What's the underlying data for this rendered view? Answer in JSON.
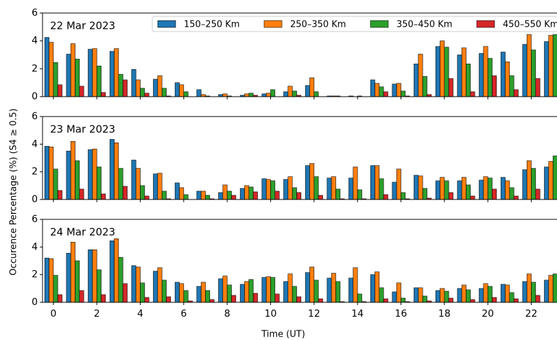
{
  "chart_data": [
    {
      "type": "bar",
      "title": "22 Mar 2023",
      "x": [
        0,
        1,
        2,
        3,
        4,
        5,
        6,
        7,
        8,
        9,
        10,
        11,
        12,
        13,
        14,
        15,
        16,
        17,
        18,
        19,
        20,
        21,
        22,
        23
      ],
      "xlim": [
        -0.5,
        23.5
      ],
      "xticks": [
        0,
        2,
        4,
        6,
        8,
        10,
        12,
        14,
        16,
        18,
        20,
        22
      ],
      "ylim": [
        0,
        6
      ],
      "yticks": [
        0,
        2,
        4,
        6
      ],
      "legend": "upper right",
      "series": [
        {
          "name": "150–250 Km",
          "color": "#1f77b4",
          "values": [
            4.25,
            3.05,
            3.4,
            3.25,
            1.95,
            1.25,
            1.0,
            0.5,
            0.15,
            0.1,
            0.2,
            0.35,
            0.8,
            0.05,
            0.05,
            1.2,
            0.9,
            2.35,
            3.6,
            3.0,
            3.1,
            3.2,
            3.75,
            3.95
          ]
        },
        {
          "name": "250–350 Km",
          "color": "#ff7f0e",
          "values": [
            3.9,
            3.8,
            3.45,
            3.45,
            1.2,
            1.5,
            0.85,
            0.15,
            0.2,
            0.2,
            0.25,
            0.75,
            1.35,
            0.05,
            0,
            0.95,
            0.95,
            3.05,
            4.0,
            3.5,
            3.6,
            2.5,
            4.45,
            4.4
          ]
        },
        {
          "name": "350–450 Km",
          "color": "#2ca02c",
          "values": [
            2.45,
            2.7,
            2.2,
            1.6,
            0.6,
            0.6,
            0.35,
            0.05,
            0.05,
            0.25,
            0.5,
            0.4,
            0.35,
            0.05,
            0.05,
            0.7,
            0.4,
            1.45,
            3.55,
            2.35,
            2.75,
            1.5,
            3.35,
            4.45
          ]
        },
        {
          "name": "450–550 Km",
          "color": "#d62728",
          "values": [
            0.85,
            0.75,
            0.3,
            1.2,
            0.25,
            0.05,
            0,
            0,
            0,
            0.1,
            0,
            0.1,
            0,
            0,
            0,
            0.35,
            0.05,
            0.15,
            1.3,
            0.35,
            1.5,
            0.5,
            1.3,
            1.0
          ]
        }
      ]
    },
    {
      "type": "bar",
      "title": "23 Mar 2023",
      "ylabel": "Occurence Percentage (%) (S4 ≥ 0.5)",
      "x": [
        0,
        1,
        2,
        3,
        4,
        5,
        6,
        7,
        8,
        9,
        10,
        11,
        12,
        13,
        14,
        15,
        16,
        17,
        18,
        19,
        20,
        21,
        22,
        23
      ],
      "xlim": [
        -0.5,
        23.5
      ],
      "xticks": [
        0,
        2,
        4,
        6,
        8,
        10,
        12,
        14,
        16,
        18,
        20,
        22
      ],
      "ylim": [
        0,
        6
      ],
      "yticks": [
        0,
        2,
        4,
        6
      ],
      "series": [
        {
          "color": "#1f77b4",
          "values": [
            3.85,
            3.5,
            3.6,
            4.35,
            2.85,
            1.85,
            1.2,
            0.6,
            0.5,
            0.8,
            1.5,
            1.45,
            2.45,
            1.55,
            1.55,
            2.45,
            1.25,
            1.75,
            1.35,
            1.35,
            1.4,
            1.6,
            2.15,
            2.35
          ]
        },
        {
          "color": "#ff7f0e",
          "values": [
            3.8,
            4.2,
            3.65,
            4.1,
            2.25,
            1.9,
            0.85,
            0.6,
            1.05,
            1.0,
            1.45,
            1.65,
            2.6,
            1.65,
            2.35,
            2.45,
            2.2,
            1.7,
            1.6,
            1.6,
            1.65,
            1.35,
            2.8,
            2.75
          ]
        },
        {
          "color": "#2ca02c",
          "values": [
            2.2,
            2.8,
            2.35,
            2.25,
            1.0,
            0.6,
            0.35,
            0.3,
            0.6,
            0.9,
            1.35,
            0.85,
            1.65,
            0.75,
            0.7,
            1.5,
            0.5,
            0.8,
            1.35,
            1.05,
            1.55,
            0.85,
            2.25,
            3.15
          ]
        },
        {
          "color": "#d62728",
          "values": [
            0.65,
            0.75,
            0.4,
            0.95,
            0.25,
            0.05,
            0,
            0.05,
            0.3,
            0.55,
            0.6,
            0.5,
            0.3,
            0.05,
            0.05,
            0.35,
            0.05,
            0.1,
            0.5,
            0.25,
            0.75,
            0.25,
            0.75,
            1.0
          ]
        }
      ]
    },
    {
      "type": "bar",
      "title": "24 Mar 2023",
      "xlabel": "Time (UT)",
      "x": [
        0,
        1,
        2,
        3,
        4,
        5,
        6,
        7,
        8,
        9,
        10,
        11,
        12,
        13,
        14,
        15,
        16,
        17,
        18,
        19,
        20,
        21,
        22,
        23
      ],
      "xlim": [
        -0.5,
        23.5
      ],
      "xticks": [
        0,
        2,
        4,
        6,
        8,
        10,
        12,
        14,
        16,
        18,
        20,
        22
      ],
      "ylim": [
        0,
        6
      ],
      "yticks": [
        0,
        2,
        4,
        6
      ],
      "series": [
        {
          "color": "#1f77b4",
          "values": [
            3.2,
            3.55,
            3.8,
            4.45,
            2.65,
            2.25,
            1.45,
            1.15,
            1.7,
            1.3,
            1.8,
            1.5,
            2.15,
            1.75,
            1.75,
            2.0,
            0.75,
            1.05,
            0.85,
            1.0,
            1.0,
            1.3,
            1.5,
            1.6
          ]
        },
        {
          "color": "#ff7f0e",
          "values": [
            3.15,
            4.35,
            3.8,
            4.6,
            2.55,
            2.5,
            1.35,
            1.45,
            1.9,
            1.5,
            1.85,
            2.05,
            2.55,
            2.1,
            2.5,
            2.2,
            1.4,
            1.05,
            1.0,
            1.25,
            1.35,
            1.25,
            2.05,
            1.95
          ]
        },
        {
          "color": "#2ca02c",
          "values": [
            1.95,
            3.0,
            2.35,
            3.25,
            1.4,
            1.6,
            0.85,
            0.85,
            1.25,
            1.65,
            1.8,
            1.15,
            1.6,
            1.5,
            0.6,
            1.05,
            0.3,
            0.45,
            0.8,
            0.9,
            1.15,
            0.7,
            1.45,
            2.05
          ]
        },
        {
          "color": "#d62728",
          "values": [
            0.55,
            0.85,
            0.55,
            1.35,
            0.35,
            0.4,
            0.1,
            0.2,
            0.5,
            0.65,
            0.6,
            0.4,
            0.25,
            0.05,
            0.05,
            0.25,
            0.05,
            0.1,
            0.3,
            0.2,
            0.35,
            0.25,
            0.5,
            0.5
          ]
        }
      ]
    }
  ]
}
